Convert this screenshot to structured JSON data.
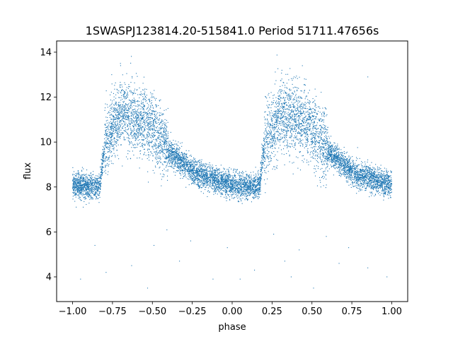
{
  "chart_data": {
    "type": "scatter",
    "title": "1SWASPJ123814.20-515841.0 Period 51711.47656s",
    "xlabel": "phase",
    "ylabel": "flux",
    "xlim": [
      -1.1,
      1.1
    ],
    "ylim": [
      2.9,
      14.5
    ],
    "xticks": [
      -1.0,
      -0.75,
      -0.5,
      -0.25,
      0.0,
      0.25,
      0.5,
      0.75,
      1.0
    ],
    "xtick_labels": [
      "−1.00",
      "−0.75",
      "−0.50",
      "−0.25",
      "0.00",
      "0.25",
      "0.50",
      "0.75",
      "1.00"
    ],
    "yticks": [
      4,
      6,
      8,
      10,
      12,
      14
    ],
    "ytick_labels": [
      "4",
      "6",
      "8",
      "10",
      "12",
      "14"
    ],
    "grid": false,
    "color": "#1f77b4",
    "series": [
      {
        "trend_phase": [
          0.0,
          0.1,
          0.17,
          0.2,
          0.25,
          0.3,
          0.35,
          0.4,
          0.45,
          0.5,
          0.55,
          0.6,
          0.65,
          0.7,
          0.75,
          0.8,
          0.9,
          1.0
        ],
        "trend_flux": [
          8.1,
          8.0,
          8.0,
          9.8,
          10.6,
          11.3,
          11.2,
          11.0,
          10.9,
          10.6,
          10.1,
          9.6,
          9.3,
          9.0,
          8.7,
          8.5,
          8.3,
          8.1
        ],
        "outlier_phase": [
          -0.95,
          -0.86,
          -0.79,
          -0.63,
          -0.53,
          -0.49,
          -0.33,
          -0.26,
          -0.12,
          -0.03,
          0.05,
          0.14,
          0.26,
          0.33,
          0.37,
          0.42,
          0.51,
          0.59,
          0.67,
          0.73,
          0.85,
          0.97,
          -0.7,
          0.44,
          0.85
        ],
        "outlier_flux": [
          3.9,
          5.4,
          4.2,
          4.5,
          3.5,
          5.4,
          4.7,
          5.6,
          3.9,
          5.3,
          3.9,
          4.3,
          5.9,
          4.7,
          4.0,
          5.2,
          3.5,
          5.8,
          4.6,
          5.3,
          4.4,
          4.0,
          13.5,
          13.4,
          12.9
        ]
      }
    ]
  }
}
